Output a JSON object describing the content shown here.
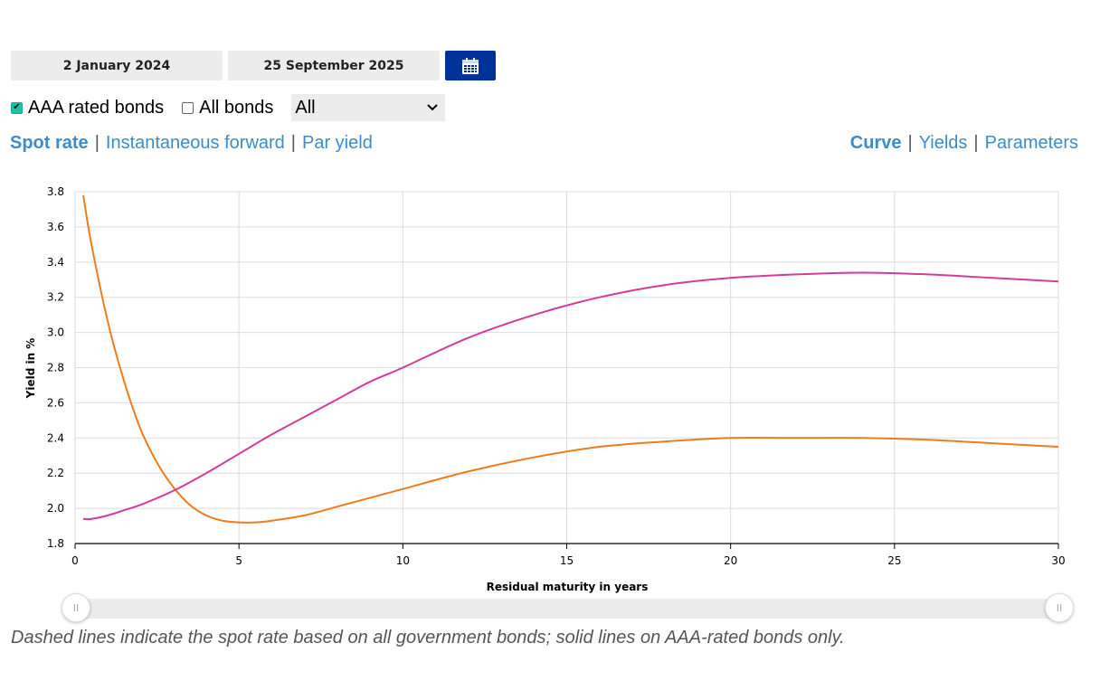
{
  "dates": {
    "start_label": "2 January 2024",
    "end_label": "25 September 2025",
    "start_color": "#f07b1a",
    "end_color": "#d63b9b"
  },
  "filters": {
    "aaa_label": "AAA rated bonds",
    "aaa_checked": true,
    "all_label": "All bonds",
    "all_checked": false,
    "select_value": "All"
  },
  "nav_left": [
    "Spot rate",
    "Instantaneous forward",
    "Par yield"
  ],
  "nav_right": [
    "Curve",
    "Yields",
    "Parameters"
  ],
  "chart_data": {
    "type": "line",
    "xlabel": "Residual maturity in years",
    "ylabel": "Yield in %",
    "xlim": [
      0,
      30
    ],
    "ylim": [
      1.8,
      3.8
    ],
    "xticks": [
      "0",
      "5",
      "10",
      "15",
      "20",
      "25",
      "30"
    ],
    "yticks": [
      "1.8",
      "2.0",
      "2.2",
      "2.4",
      "2.6",
      "2.8",
      "3.0",
      "3.2",
      "3.4",
      "3.6",
      "3.8"
    ],
    "grid": true,
    "series": [
      {
        "name": "2 January 2024",
        "color": "#f07b1a",
        "x": [
          0.25,
          0.5,
          1,
          1.5,
          2,
          2.5,
          3,
          3.5,
          4,
          4.5,
          5,
          5.5,
          6,
          7,
          8,
          9,
          10,
          12,
          14,
          16,
          18,
          20,
          22,
          24,
          26,
          28,
          30
        ],
        "y": [
          3.78,
          3.5,
          3.06,
          2.72,
          2.45,
          2.26,
          2.12,
          2.02,
          1.96,
          1.93,
          1.92,
          1.92,
          1.93,
          1.96,
          2.01,
          2.06,
          2.11,
          2.21,
          2.29,
          2.35,
          2.38,
          2.4,
          2.4,
          2.4,
          2.39,
          2.37,
          2.35
        ]
      },
      {
        "name": "25 September 2025",
        "color": "#d63b9b",
        "x": [
          0.25,
          0.5,
          1,
          1.5,
          2,
          3,
          4,
          5,
          6,
          7,
          8,
          9,
          10,
          12,
          14,
          16,
          18,
          20,
          22,
          24,
          26,
          28,
          30
        ],
        "y": [
          1.94,
          1.94,
          1.96,
          1.99,
          2.02,
          2.1,
          2.2,
          2.31,
          2.42,
          2.52,
          2.62,
          2.72,
          2.8,
          2.97,
          3.1,
          3.2,
          3.27,
          3.31,
          3.33,
          3.34,
          3.33,
          3.31,
          3.29
        ]
      }
    ]
  },
  "slider": {
    "left_label": "II",
    "right_label": "II"
  },
  "footnote": "Dashed lines indicate the spot rate based on all government bonds; solid lines on AAA-rated bonds only."
}
